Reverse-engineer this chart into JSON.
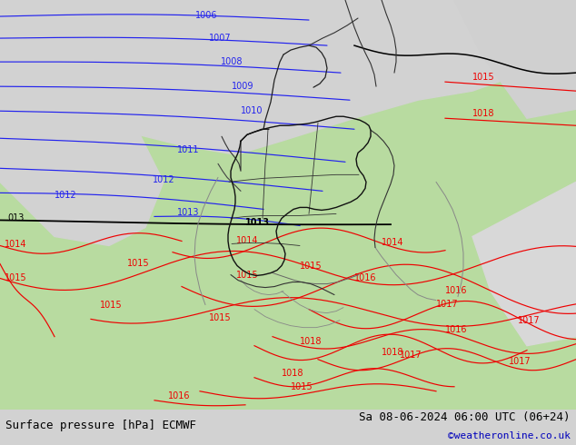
{
  "title_left": "Surface pressure [hPa] ECMWF",
  "title_right": "Sa 08-06-2024 06:00 UTC (06+24)",
  "credit": "©weatheronline.co.uk",
  "color_land": "#b8dba0",
  "color_sea": "#d2d2d2",
  "color_blue": "#2222ee",
  "color_red": "#ee0000",
  "color_black": "#000000",
  "color_border_dark": "#222222",
  "color_border_gray": "#888888",
  "color_credit": "#0000bb",
  "fig_width": 6.34,
  "fig_height": 4.9,
  "dpi": 100
}
